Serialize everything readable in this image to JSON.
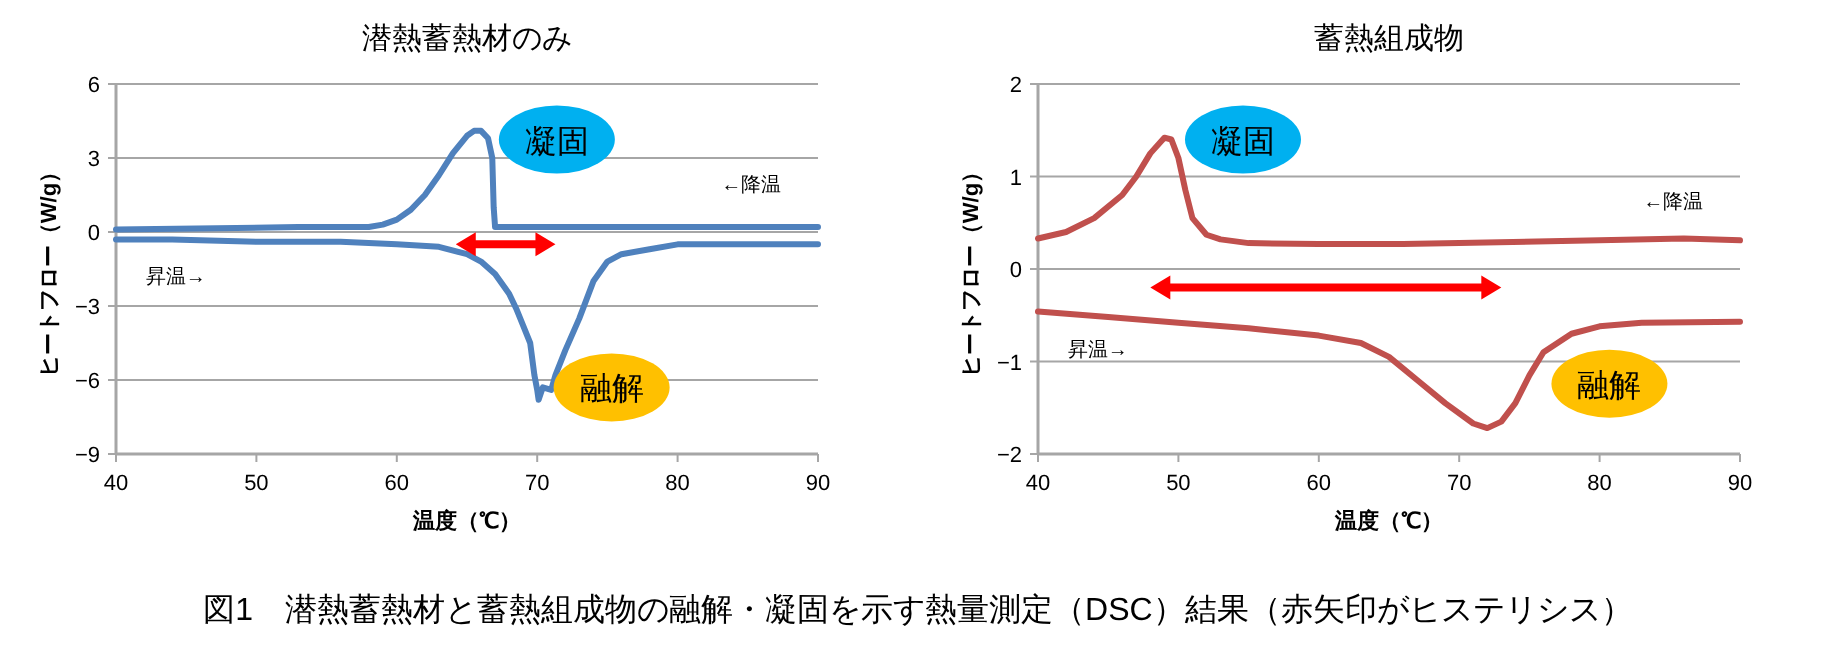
{
  "chart_data": [
    {
      "type": "line",
      "title": "潜熱蓄熱材のみ",
      "xlabel": "温度（℃）",
      "ylabel": "ヒートフロー（W/g）",
      "xlim": [
        40,
        90
      ],
      "xticks": [
        40,
        50,
        60,
        70,
        80,
        90
      ],
      "ylim": [
        -9,
        6
      ],
      "yticks": [
        -9,
        -6,
        -3,
        0,
        3,
        6
      ],
      "grid": "y",
      "series": [
        {
          "name": "←降温",
          "color": "#4f81bd",
          "x": [
            40,
            53,
            58,
            59,
            60,
            61,
            62,
            63,
            64,
            65,
            65.5,
            66,
            66.5,
            66.8,
            66.9,
            67,
            68,
            90
          ],
          "values": [
            0.1,
            0.2,
            0.2,
            0.3,
            0.5,
            0.9,
            1.5,
            2.3,
            3.2,
            3.9,
            4.1,
            4.1,
            3.8,
            3.0,
            1.0,
            0.2,
            0.2,
            0.2
          ]
        },
        {
          "name": "昇温→",
          "color": "#4f81bd",
          "x": [
            40,
            44,
            50,
            56,
            60,
            63,
            65,
            66,
            67,
            68,
            68.5,
            69,
            69.5,
            69.8,
            70,
            70.1,
            70.4,
            71,
            71.3,
            72,
            73,
            74,
            75,
            76,
            78,
            80,
            90
          ],
          "values": [
            -0.3,
            -0.3,
            -0.4,
            -0.4,
            -0.5,
            -0.6,
            -0.9,
            -1.2,
            -1.7,
            -2.5,
            -3.1,
            -3.8,
            -4.5,
            -5.8,
            -6.4,
            -6.8,
            -6.3,
            -6.4,
            -5.8,
            -4.8,
            -3.5,
            -2.0,
            -1.2,
            -0.9,
            -0.7,
            -0.5,
            -0.5
          ]
        }
      ],
      "annotations": [
        "凝固",
        "融解",
        "図1　潜熱蓄熱材と蓄熱組成物の融解・凝固を示す熱量測定（DSC）結果（赤矢印がヒステリシス）"
      ]
    },
    {
      "type": "line",
      "title": "蓄熱組成物",
      "xlabel": "温度（℃）",
      "ylabel": "ヒートフロー（W/g）",
      "xlim": [
        40,
        90
      ],
      "xticks": [
        40,
        50,
        60,
        70,
        80,
        90
      ],
      "ylim": [
        -2,
        2
      ],
      "yticks": [
        -2,
        -1,
        0,
        1,
        2
      ],
      "grid": "y",
      "series": [
        {
          "name": "←降温",
          "color": "#c0504d",
          "x": [
            40,
            42,
            44,
            46,
            47,
            48,
            49,
            49.5,
            50,
            50.5,
            51,
            52,
            53,
            55,
            60,
            66,
            70,
            80,
            86,
            90
          ],
          "values": [
            0.33,
            0.4,
            0.55,
            0.8,
            1.0,
            1.25,
            1.42,
            1.4,
            1.2,
            0.85,
            0.55,
            0.37,
            0.32,
            0.28,
            0.27,
            0.27,
            0.28,
            0.31,
            0.33,
            0.31
          ]
        },
        {
          "name": "昇温→",
          "color": "#c0504d",
          "x": [
            40,
            45,
            50,
            55,
            60,
            63,
            65,
            67,
            69,
            71,
            72,
            73,
            74,
            75,
            76,
            78,
            80,
            83,
            90
          ],
          "values": [
            -0.46,
            -0.52,
            -0.58,
            -0.64,
            -0.72,
            -0.8,
            -0.95,
            -1.2,
            -1.45,
            -1.67,
            -1.72,
            -1.65,
            -1.45,
            -1.15,
            -0.9,
            -0.7,
            -0.62,
            -0.58,
            -0.57
          ]
        }
      ],
      "annotations": [
        "凝固",
        "融解"
      ]
    }
  ]
}
